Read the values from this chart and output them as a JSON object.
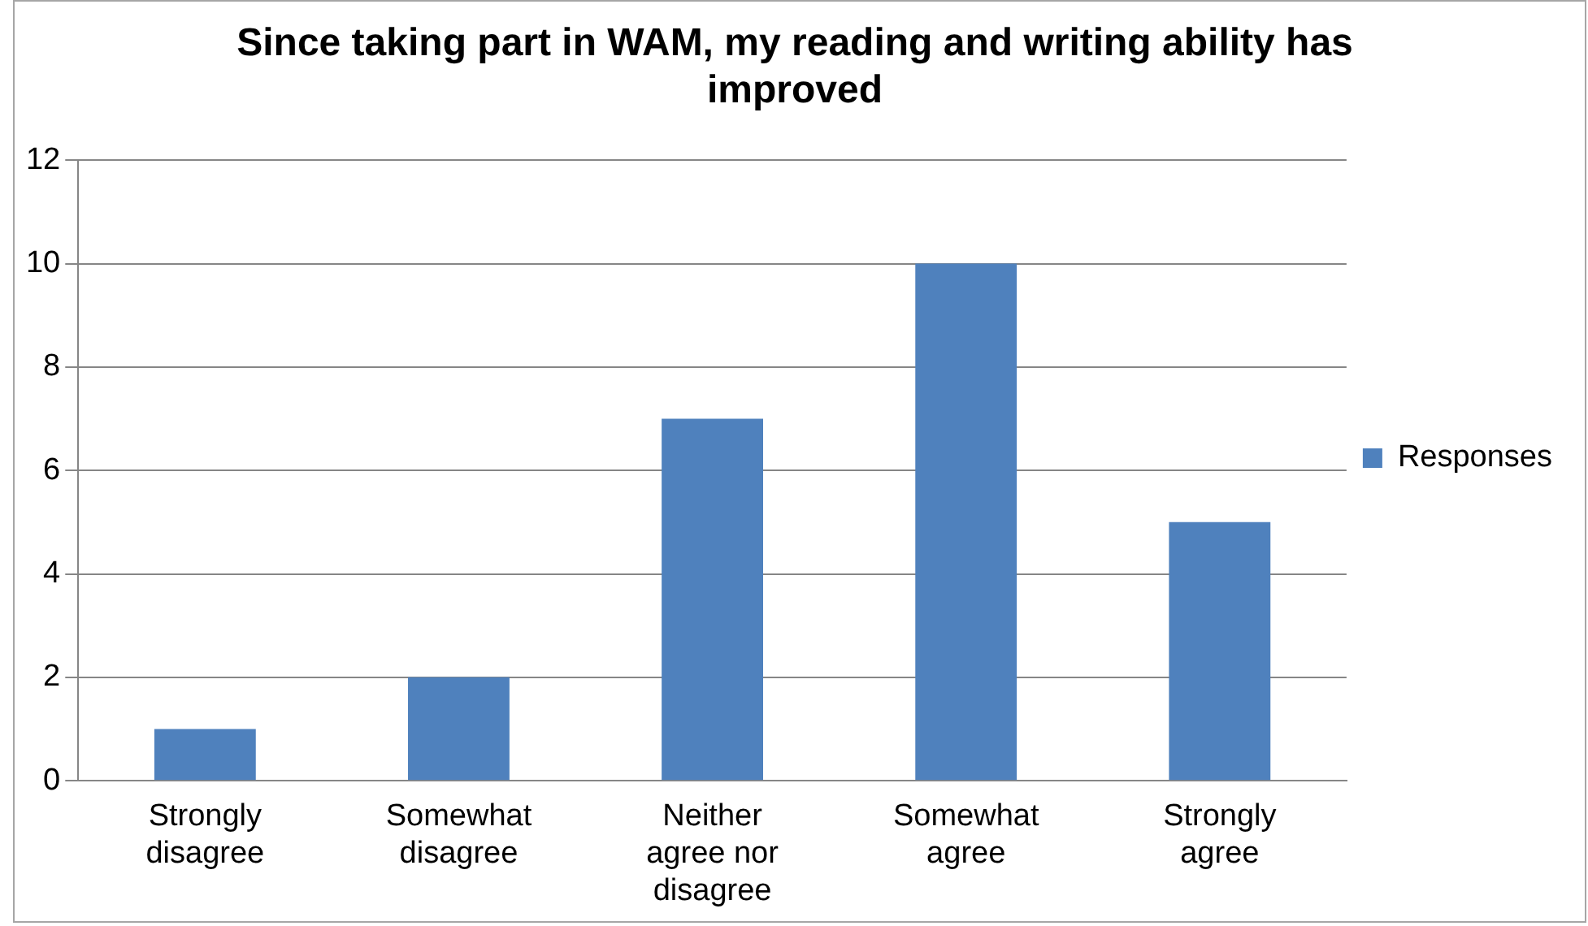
{
  "chart_data": {
    "type": "bar",
    "title": "Since taking part in WAM, my reading and writing ability has improved",
    "categories": [
      "Strongly disagree",
      "Somewhat disagree",
      "Neither agree nor disagree",
      "Somewhat agree",
      "Strongly agree"
    ],
    "series": [
      {
        "name": "Responses",
        "color": "#4f81bd",
        "values": [
          1,
          2,
          7,
          10,
          5
        ]
      }
    ],
    "ylim": [
      0,
      12
    ],
    "yticks": [
      0,
      2,
      4,
      6,
      8,
      10,
      12
    ],
    "grid": "y",
    "legend": "right"
  }
}
